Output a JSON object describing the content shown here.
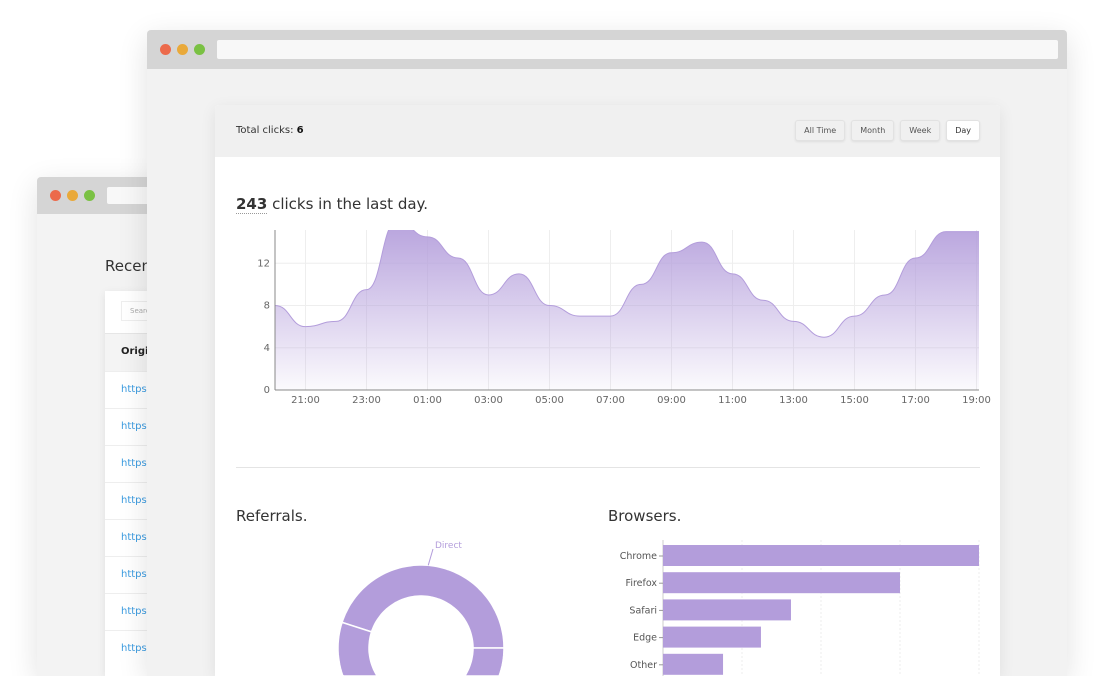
{
  "back_window": {
    "title": "Recent",
    "search_placeholder": "Search",
    "column_header": "Original URL",
    "rows": [
      "https://",
      "https://",
      "https://",
      "https://",
      "https://",
      "https://",
      "https://",
      "https://"
    ]
  },
  "header": {
    "total_label": "Total clicks: ",
    "total_value": "6",
    "filters": [
      {
        "label": "All Time",
        "active": false
      },
      {
        "label": "Month",
        "active": false
      },
      {
        "label": "Week",
        "active": false
      },
      {
        "label": "Day",
        "active": true
      }
    ]
  },
  "summary": {
    "count": "243",
    "text": " clicks in the last day."
  },
  "colors": {
    "accent": "#b39ddb",
    "window_red": "#ec6a4b",
    "window_yellow": "#e9a93a",
    "window_green": "#7ac143"
  },
  "chart_data": [
    {
      "type": "area",
      "x": [
        "20:00",
        "21:00",
        "22:00",
        "23:00",
        "00:00",
        "01:00",
        "02:00",
        "03:00",
        "04:00",
        "05:00",
        "06:00",
        "07:00",
        "08:00",
        "09:00",
        "10:00",
        "11:00",
        "12:00",
        "13:00",
        "14:00",
        "15:00",
        "16:00",
        "17:00",
        "18:00",
        "19:00"
      ],
      "values": [
        8,
        6,
        6.5,
        9.5,
        16,
        14.5,
        12.5,
        9,
        11,
        8,
        7,
        7,
        10,
        13,
        14,
        11,
        8.5,
        6.5,
        5,
        7,
        9,
        12.5,
        15,
        15
      ],
      "xticks": [
        "21:00",
        "23:00",
        "01:00",
        "03:00",
        "05:00",
        "07:00",
        "09:00",
        "11:00",
        "13:00",
        "15:00",
        "17:00",
        "19:00"
      ],
      "yticks": [
        "0",
        "4",
        "8",
        "12",
        "16"
      ],
      "ylim": [
        0,
        16
      ],
      "grid": true
    },
    {
      "type": "pie",
      "title": "Referrals.",
      "slices": [
        {
          "label": "Direct",
          "value": 45
        },
        {
          "value": 55
        }
      ]
    },
    {
      "type": "bar",
      "orientation": "horizontal",
      "title": "Browsers.",
      "categories": [
        "Chrome",
        "Firefox",
        "Safari",
        "Edge",
        "Other"
      ],
      "values": [
        100,
        75,
        40.5,
        31,
        19
      ],
      "grid": true
    }
  ]
}
